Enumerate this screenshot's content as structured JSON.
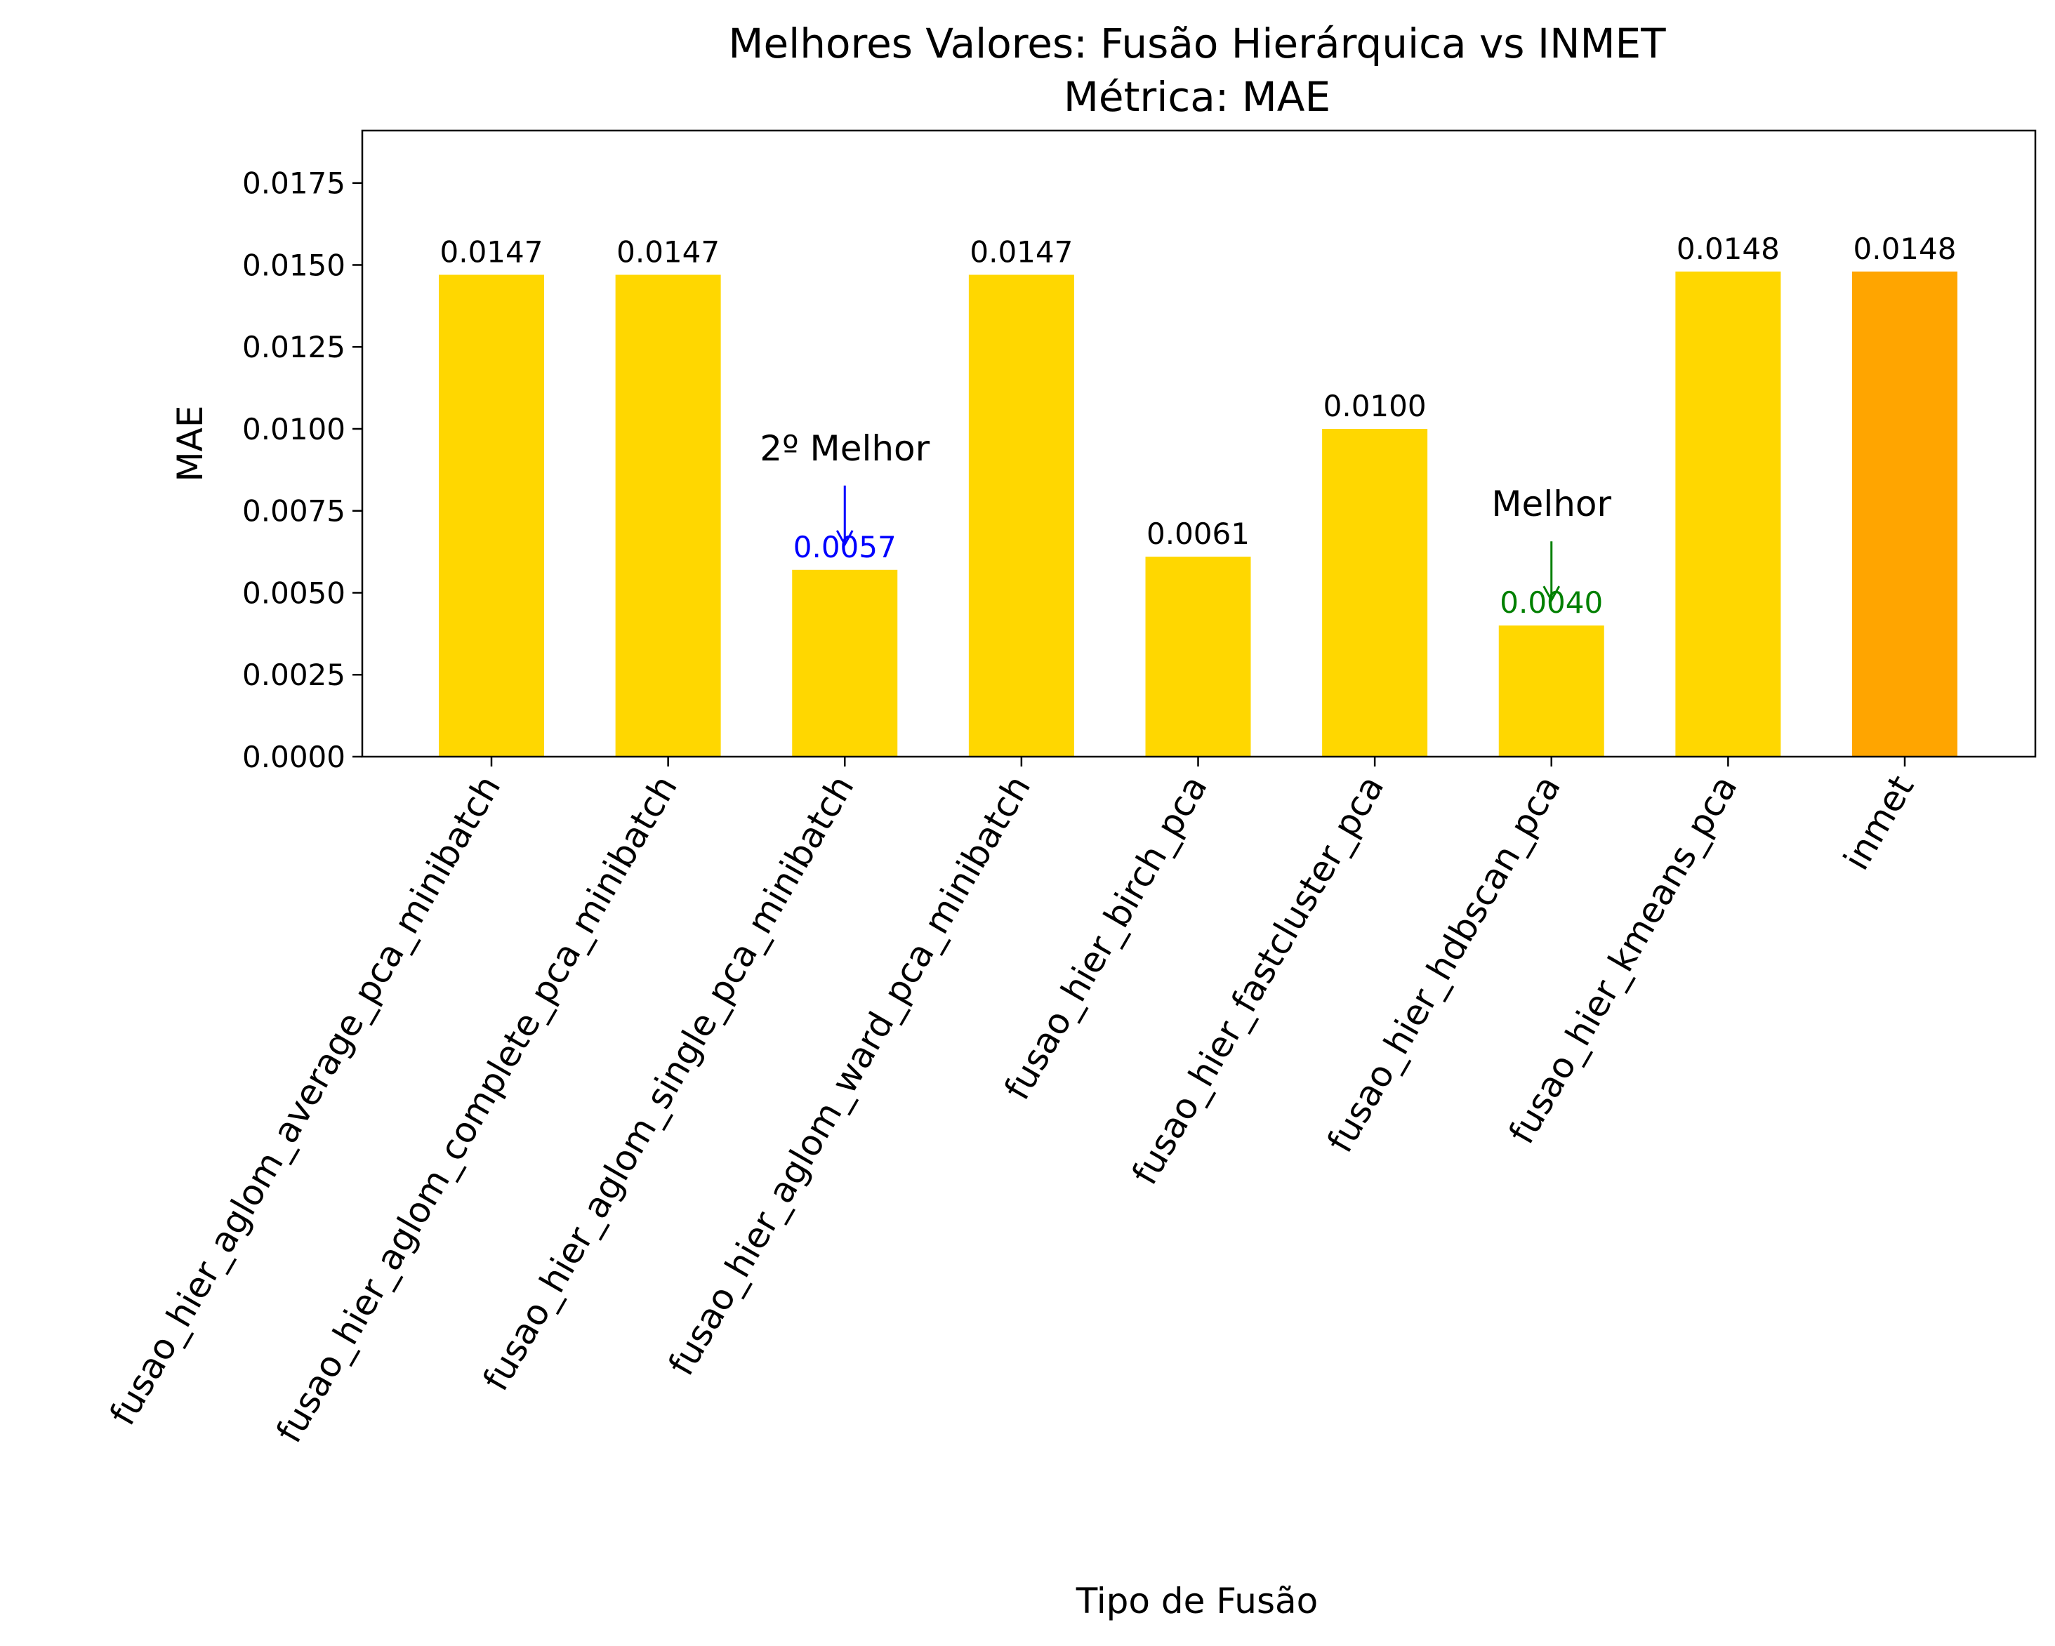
{
  "chart_data": {
    "type": "bar",
    "title": "Melhores Valores: Fusão Hierárquica vs INMET",
    "subtitle": "Métrica: MAE",
    "xlabel": "Tipo de Fusão",
    "ylabel": "MAE",
    "ylim": [
      0,
      0.0191
    ],
    "yticks": [
      "0.0000",
      "0.0025",
      "0.0050",
      "0.0075",
      "0.0100",
      "0.0125",
      "0.0150",
      "0.0175"
    ],
    "ytick_values": [
      0,
      0.0025,
      0.005,
      0.0075,
      0.01,
      0.0125,
      0.015,
      0.0175
    ],
    "grid": false,
    "categories": [
      "fusao_hier_aglom_average_pca_minibatch",
      "fusao_hier_aglom_complete_pca_minibatch",
      "fusao_hier_aglom_single_pca_minibatch",
      "fusao_hier_aglom_ward_pca_minibatch",
      "fusao_hier_birch_pca",
      "fusao_hier_fastcluster_pca",
      "fusao_hier_hdbscan_pca",
      "fusao_hier_kmeans_pca",
      "inmet"
    ],
    "values": [
      0.0147,
      0.0147,
      0.0057,
      0.0147,
      0.0061,
      0.01,
      0.004,
      0.0148,
      0.0148
    ],
    "value_labels": [
      "0.0147",
      "0.0147",
      "0.0057",
      "0.0147",
      "0.0061",
      "0.0100",
      "0.0040",
      "0.0148",
      "0.0148"
    ],
    "bar_colors": [
      "#FFD700",
      "#FFD700",
      "#FFD700",
      "#FFD700",
      "#FFD700",
      "#FFD700",
      "#FFD700",
      "#FFD700",
      "#FFA500"
    ],
    "value_label_colors": [
      "#000000",
      "#000000",
      "#0000FF",
      "#000000",
      "#000000",
      "#000000",
      "#008000",
      "#000000",
      "#000000"
    ],
    "annotations": [
      {
        "text": "2º Melhor",
        "category_index": 2,
        "color": "#0000FF"
      },
      {
        "text": "Melhor",
        "category_index": 6,
        "color": "#008000"
      }
    ]
  }
}
